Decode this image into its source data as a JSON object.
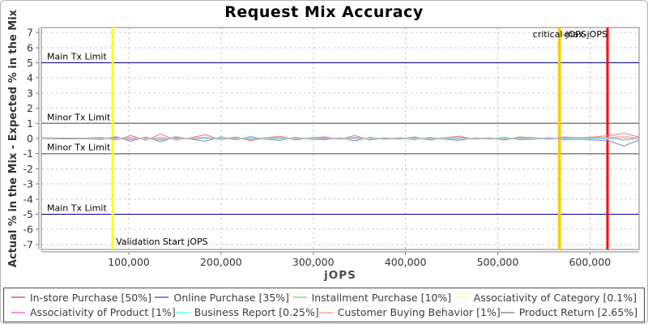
{
  "title": "Request Mix Accuracy",
  "chart_data": {
    "type": "line",
    "title": "Request Mix Accuracy",
    "xlabel": "jOPS",
    "ylabel": "Actual % in the Mix - Expected % in the Mix",
    "xlim": [
      5100,
      653300
    ],
    "ylim": [
      -7.33,
      7.33
    ],
    "grid": true,
    "legend_position": "bottom",
    "x_ticks": [
      100000,
      200000,
      300000,
      400000,
      500000,
      600000
    ],
    "x_tick_labels": [
      "100,000",
      "200,000",
      "300,000",
      "400,000",
      "500,000",
      "600,000"
    ],
    "y_ticks": [
      -7,
      -6,
      -5,
      -4,
      -3,
      -2,
      -1,
      0,
      1,
      2,
      3,
      4,
      5,
      6,
      7
    ],
    "x": [
      5000,
      21200,
      37400,
      53600,
      69800,
      86000,
      102200,
      118400,
      134600,
      150800,
      167000,
      183200,
      199400,
      215600,
      231800,
      248000,
      264200,
      280400,
      296600,
      312800,
      329000,
      345200,
      361400,
      377600,
      393800,
      410000,
      426200,
      442400,
      458600,
      474800,
      491000,
      507200,
      523400,
      539600,
      555800,
      572000,
      588200,
      604400,
      620600,
      636800,
      653000
    ],
    "series": [
      {
        "name": "In-store Purchase [50%]",
        "color": "#f08080",
        "values": [
          0.05,
          0.03,
          0.03,
          0.02,
          0.08,
          -0.1,
          0.2,
          -0.12,
          0.3,
          -0.1,
          0.05,
          0.25,
          -0.08,
          0.1,
          -0.15,
          0.05,
          0.15,
          -0.1,
          0.05,
          0.1,
          -0.05,
          0.2,
          -0.1,
          0.05,
          -0.05,
          0.1,
          -0.1,
          0.05,
          0.15,
          -0.05,
          0.05,
          -0.1,
          0.1,
          0.05,
          -0.05,
          0.1,
          0.05,
          0.1,
          0.2,
          0.35,
          0.1
        ]
      },
      {
        "name": "Online Purchase [35%]",
        "color": "#8888d8",
        "values": [
          0.0,
          -0.02,
          -0.02,
          -0.01,
          -0.06,
          0.12,
          -0.18,
          0.1,
          -0.22,
          0.12,
          -0.04,
          -0.18,
          0.1,
          -0.08,
          0.12,
          -0.05,
          -0.12,
          0.08,
          -0.05,
          -0.08,
          0.05,
          -0.15,
          0.08,
          -0.05,
          0.05,
          -0.08,
          0.08,
          -0.05,
          -0.12,
          0.05,
          -0.05,
          0.08,
          -0.08,
          -0.05,
          0.05,
          -0.08,
          -0.05,
          -0.1,
          -0.15,
          -0.5,
          -0.1
        ]
      },
      {
        "name": "Installment Purchase [10%]",
        "color": "#90ee90",
        "values": [
          0.0,
          0.0,
          0.01,
          -0.01,
          -0.02,
          0.05,
          -0.08,
          0.06,
          -0.1,
          0.05,
          0.0,
          0.08,
          -0.05,
          0.04,
          -0.06,
          0.03,
          0.06,
          -0.04,
          0.02,
          0.04,
          -0.03,
          0.06,
          -0.04,
          0.02,
          -0.02,
          0.04,
          -0.04,
          0.02,
          0.05,
          -0.03,
          0.02,
          -0.04,
          0.04,
          0.02,
          -0.02,
          0.03,
          0.02,
          0.04,
          0.05,
          0.15,
          0.0
        ]
      },
      {
        "name": "Associativity of Category [0.1%]",
        "color": "#ffff99",
        "values": [
          0,
          0,
          0,
          0,
          0,
          0.01,
          -0.01,
          0.01,
          -0.01,
          0.01,
          0,
          0.01,
          -0.01,
          0,
          0.01,
          -0.01,
          0,
          0.01,
          -0.01,
          0,
          0.01,
          -0.01,
          0,
          0.01,
          -0.01,
          0,
          0.01,
          -0.01,
          0,
          0.01,
          -0.01,
          0,
          0.01,
          -0.01,
          0,
          0.01,
          -0.01,
          0,
          0.01,
          0.02,
          0
        ]
      },
      {
        "name": "Associativity of Product [1%]",
        "color": "#f88cf8",
        "values": [
          0,
          0,
          0,
          0,
          0.01,
          -0.02,
          0.03,
          -0.02,
          0.03,
          -0.02,
          0.01,
          0.02,
          -0.02,
          0.01,
          -0.02,
          0.01,
          0.02,
          -0.01,
          0.01,
          -0.02,
          0.01,
          0.02,
          -0.02,
          0.01,
          -0.01,
          0.02,
          -0.02,
          0.01,
          0.02,
          -0.01,
          0.01,
          -0.02,
          0.02,
          0.01,
          -0.01,
          0.02,
          0.01,
          0.02,
          0.03,
          0.05,
          0.01
        ]
      },
      {
        "name": "Business Report [0.25%]",
        "color": "#88ffff",
        "values": [
          0,
          0,
          0,
          0,
          -0.01,
          0.02,
          -0.03,
          0.02,
          -0.03,
          0.02,
          -0.01,
          -0.02,
          0.02,
          -0.01,
          0.02,
          -0.01,
          -0.02,
          0.01,
          -0.01,
          0.02,
          -0.01,
          -0.02,
          0.02,
          -0.01,
          0.01,
          -0.02,
          0.02,
          -0.01,
          -0.02,
          0.01,
          -0.01,
          0.02,
          -0.02,
          -0.01,
          0.01,
          -0.02,
          -0.01,
          -0.02,
          -0.03,
          0.08,
          0.01
        ]
      },
      {
        "name": "Customer Buying Behavior [1%]",
        "color": "#ffbbb0",
        "values": [
          0.02,
          0.01,
          0.01,
          0.01,
          0.03,
          -0.05,
          0.08,
          -0.06,
          0.1,
          -0.05,
          0.02,
          0.08,
          -0.04,
          0.05,
          -0.06,
          0.03,
          0.06,
          -0.05,
          0.03,
          0.05,
          -0.03,
          0.08,
          -0.05,
          0.03,
          -0.03,
          0.05,
          -0.05,
          0.03,
          0.06,
          -0.03,
          0.03,
          -0.05,
          0.05,
          0.03,
          -0.03,
          0.05,
          0.03,
          0.05,
          0.08,
          0.15,
          0.05
        ]
      },
      {
        "name": "Product Return [2.65%]",
        "color": "#aaaaaa",
        "values": [
          0,
          0.01,
          0,
          0.01,
          -0.02,
          0.04,
          -0.06,
          0.05,
          -0.08,
          0.04,
          -0.02,
          0.06,
          -0.04,
          0.03,
          -0.05,
          0.02,
          0.05,
          -0.03,
          0.02,
          0.04,
          -0.02,
          0.05,
          -0.04,
          0.02,
          -0.02,
          0.04,
          -0.03,
          0.02,
          0.04,
          -0.02,
          0.02,
          -0.04,
          0.03,
          0.02,
          -0.02,
          0.03,
          0.02,
          0.03,
          0.05,
          -0.1,
          0.02
        ]
      }
    ],
    "markers": {
      "horizontal": [
        {
          "label": "Main Tx Limit",
          "y": 5,
          "color": "#000080"
        },
        {
          "label": "Minor Tx Limit",
          "y": 1,
          "color": "#808080"
        },
        {
          "label": "Minor Tx Limit",
          "y": -1,
          "color": "#808080"
        },
        {
          "label": "Main Tx Limit",
          "y": -5,
          "color": "#000080"
        }
      ],
      "vertical": [
        {
          "label": "Validation Start jOPS",
          "x": 82500,
          "color": "#ffff00",
          "label_pos": "bottom",
          "anchor": "start"
        },
        {
          "label": "critical-jOPS",
          "x": 567000,
          "color": "#ffc800",
          "label_pos": "top",
          "anchor": "middle"
        },
        {
          "label": "max-jOPS",
          "x": 619000,
          "color": "#ff0000",
          "label_pos": "top",
          "anchor": "end"
        }
      ]
    },
    "colors": {
      "grid": "#cccccc",
      "plot_border": "#808080",
      "axis": "#808080",
      "tick_text": "#333333",
      "marker_text": "#000000"
    }
  }
}
